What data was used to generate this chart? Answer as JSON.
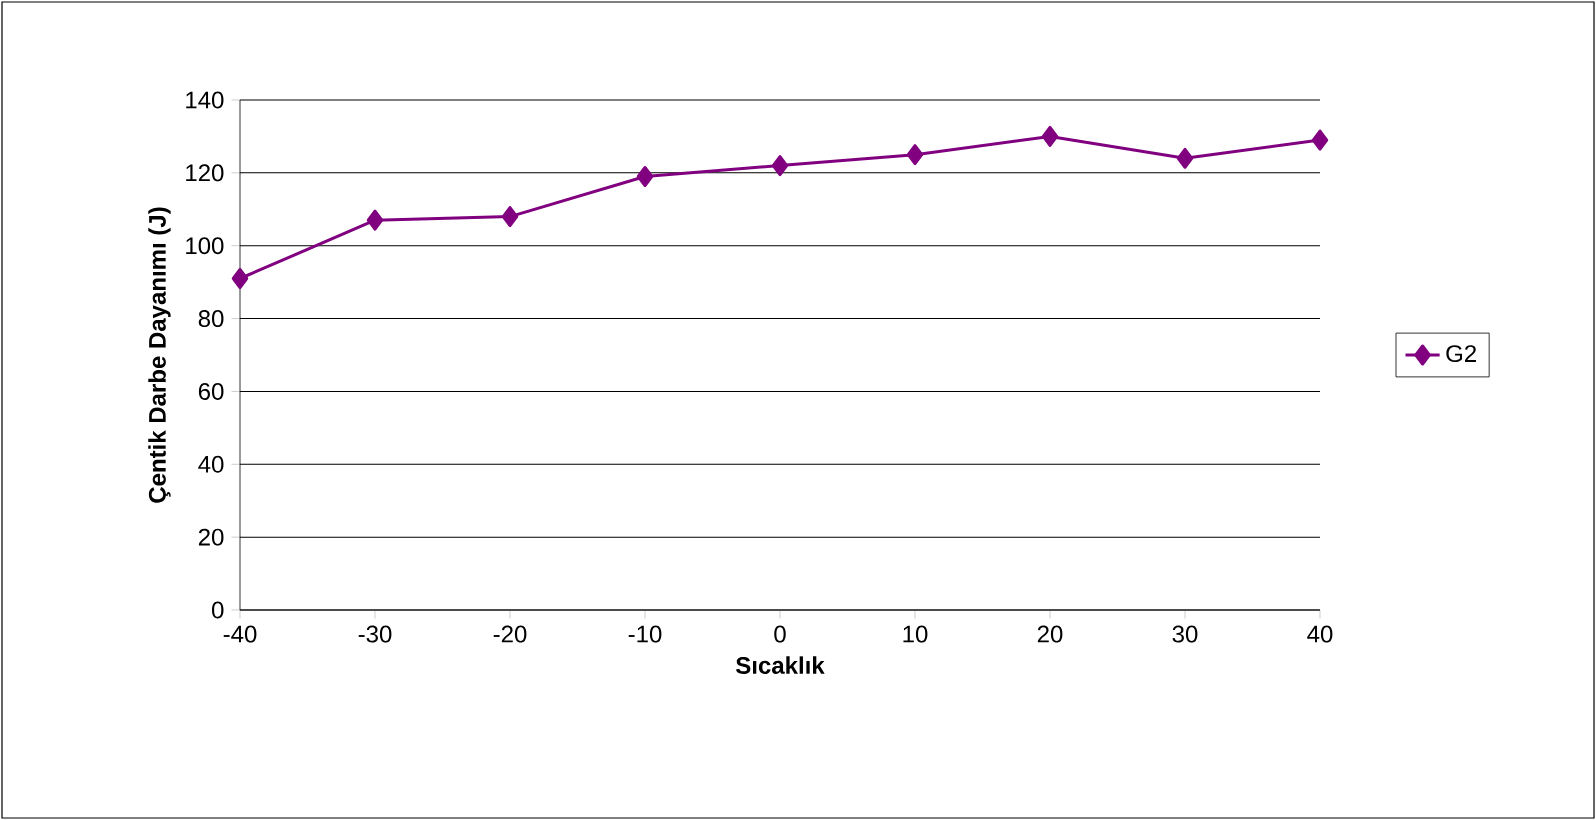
{
  "chart_data": {
    "type": "line",
    "xlabel": "Sıcaklık",
    "ylabel": "Çentik Darbe Dayanımı (J)",
    "x": [
      -40,
      -30,
      -20,
      -10,
      0,
      10,
      20,
      30,
      40
    ],
    "series": [
      {
        "name": "G2",
        "color": "#800080",
        "values": [
          91,
          107,
          108,
          119,
          122,
          125,
          130,
          124,
          129
        ]
      }
    ],
    "xlim": [
      -40,
      40
    ],
    "xticks": [
      -40,
      -30,
      -20,
      -10,
      0,
      10,
      20,
      30,
      40
    ],
    "ylim": [
      0,
      140
    ],
    "yticks": [
      0,
      20,
      40,
      60,
      80,
      100,
      120,
      140
    ],
    "grid": "y",
    "legend": "right",
    "marker": "diamond",
    "line_style": "solid"
  }
}
